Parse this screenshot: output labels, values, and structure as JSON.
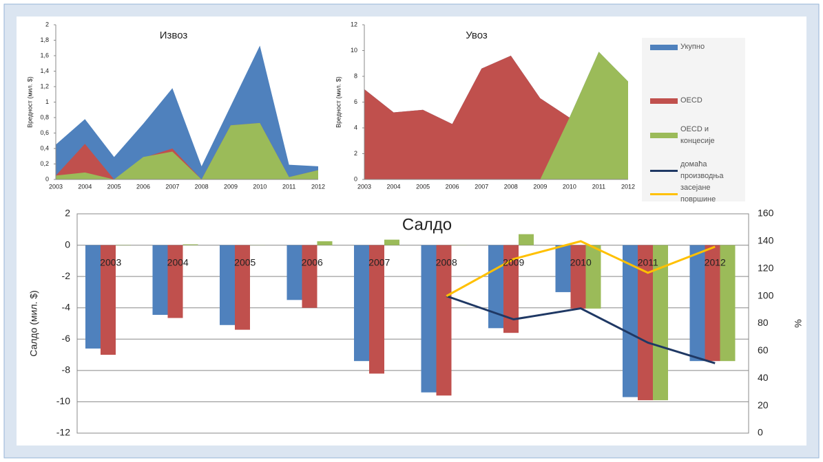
{
  "chart_data": [
    {
      "type": "area",
      "title": "Извоз",
      "y_label": "Вредност (мил. $)",
      "categories": [
        "2003",
        "2004",
        "2005",
        "2006",
        "2007",
        "2008",
        "2009",
        "2010",
        "2011",
        "2012"
      ],
      "ylim": [
        0,
        2
      ],
      "yticks": [
        0,
        {
          "value": 0.2,
          "label": "0,2"
        },
        {
          "value": 0.4,
          "label": "0,4"
        },
        {
          "value": 0.6,
          "label": "0,6"
        },
        {
          "value": 0.8,
          "label": "0,8"
        },
        1,
        {
          "value": 1.2,
          "label": "1,2"
        },
        {
          "value": 1.4,
          "label": "1,4"
        },
        {
          "value": 1.6,
          "label": "1,6"
        },
        {
          "value": 1.8,
          "label": "1,8"
        },
        2
      ],
      "grid": false,
      "series": [
        {
          "name": "Укупно",
          "color": "#4f81bd",
          "values": [
            0.45,
            0.78,
            0.29,
            0.72,
            1.18,
            0.17,
            0.95,
            1.73,
            0.19,
            0.17
          ]
        },
        {
          "name": "OECD",
          "color": "#c0504d",
          "values": [
            0.05,
            0.46,
            0,
            0.28,
            0.4,
            0,
            0.7,
            0.73,
            0.03,
            0.12
          ]
        },
        {
          "name": "OECD и концесије",
          "color": "#9bbb59",
          "values": [
            0.05,
            0.09,
            0,
            0.29,
            0.36,
            0,
            0.7,
            0.73,
            0.03,
            0.12
          ]
        }
      ]
    },
    {
      "type": "area",
      "title": "Увоз",
      "y_label": "Вредност (мил. $)",
      "categories": [
        "2003",
        "2004",
        "2005",
        "2006",
        "2007",
        "2008",
        "2009",
        "2010",
        "2011",
        "2012"
      ],
      "ylim": [
        0,
        12
      ],
      "yticks": [
        0,
        2,
        4,
        6,
        8,
        10,
        12
      ],
      "grid": false,
      "series": [
        {
          "name": "Укупно",
          "color": "#4f81bd",
          "values": [
            7.0,
            5.2,
            5.4,
            4.3,
            8.6,
            9.6,
            6.3,
            4.8,
            9.9,
            7.6
          ]
        },
        {
          "name": "OECD",
          "color": "#c0504d",
          "values": [
            7.0,
            5.2,
            5.4,
            4.3,
            8.6,
            9.6,
            6.3,
            4.8,
            null,
            null
          ]
        },
        {
          "name": "OECD и концесије",
          "color": "#9bbb59",
          "values": [
            0,
            0,
            0,
            0,
            0,
            0,
            0,
            4.8,
            9.9,
            7.6
          ]
        }
      ]
    },
    {
      "type": "bar",
      "title": "Салдо",
      "y_label": "Салдо (мил. $)",
      "y2_label": "%",
      "categories": [
        "2003",
        "2004",
        "2005",
        "2006",
        "2007",
        "2008",
        "2009",
        "2010",
        "2011",
        "2012"
      ],
      "ylim": [
        -12,
        2
      ],
      "yticks": [
        -12,
        -10,
        -8,
        -6,
        -4,
        -2,
        0,
        2
      ],
      "y2lim": [
        0,
        160
      ],
      "y2ticks": [
        0,
        20,
        40,
        60,
        80,
        100,
        120,
        140,
        160
      ],
      "grid": true,
      "series": [
        {
          "name": "Укупно",
          "color": "#4f81bd",
          "type": "bar",
          "values": [
            -6.6,
            -4.45,
            -5.1,
            -3.5,
            -7.4,
            -9.4,
            -5.3,
            -3.0,
            -9.7,
            -7.4
          ]
        },
        {
          "name": "OECD",
          "color": "#c0504d",
          "type": "bar",
          "values": [
            -7.0,
            -4.65,
            -5.4,
            -4.0,
            -8.2,
            -9.6,
            -5.6,
            -4.05,
            -9.9,
            -7.4
          ]
        },
        {
          "name": "OECD и концесије",
          "color": "#9bbb59",
          "type": "bar",
          "values": [
            0.02,
            0.05,
            0.01,
            0.25,
            0.35,
            0.01,
            0.7,
            -4.05,
            -9.9,
            -7.4
          ]
        },
        {
          "name": "домаћа производња",
          "color": "#1f3864",
          "type": "line",
          "axis": "y2",
          "values": [
            null,
            null,
            null,
            null,
            null,
            100,
            83,
            91,
            66,
            51
          ]
        },
        {
          "name": "засејане површине",
          "color": "#ffc000",
          "type": "line",
          "axis": "y2",
          "values": [
            null,
            null,
            null,
            null,
            null,
            100,
            127,
            140,
            117,
            136
          ]
        }
      ]
    }
  ]
}
